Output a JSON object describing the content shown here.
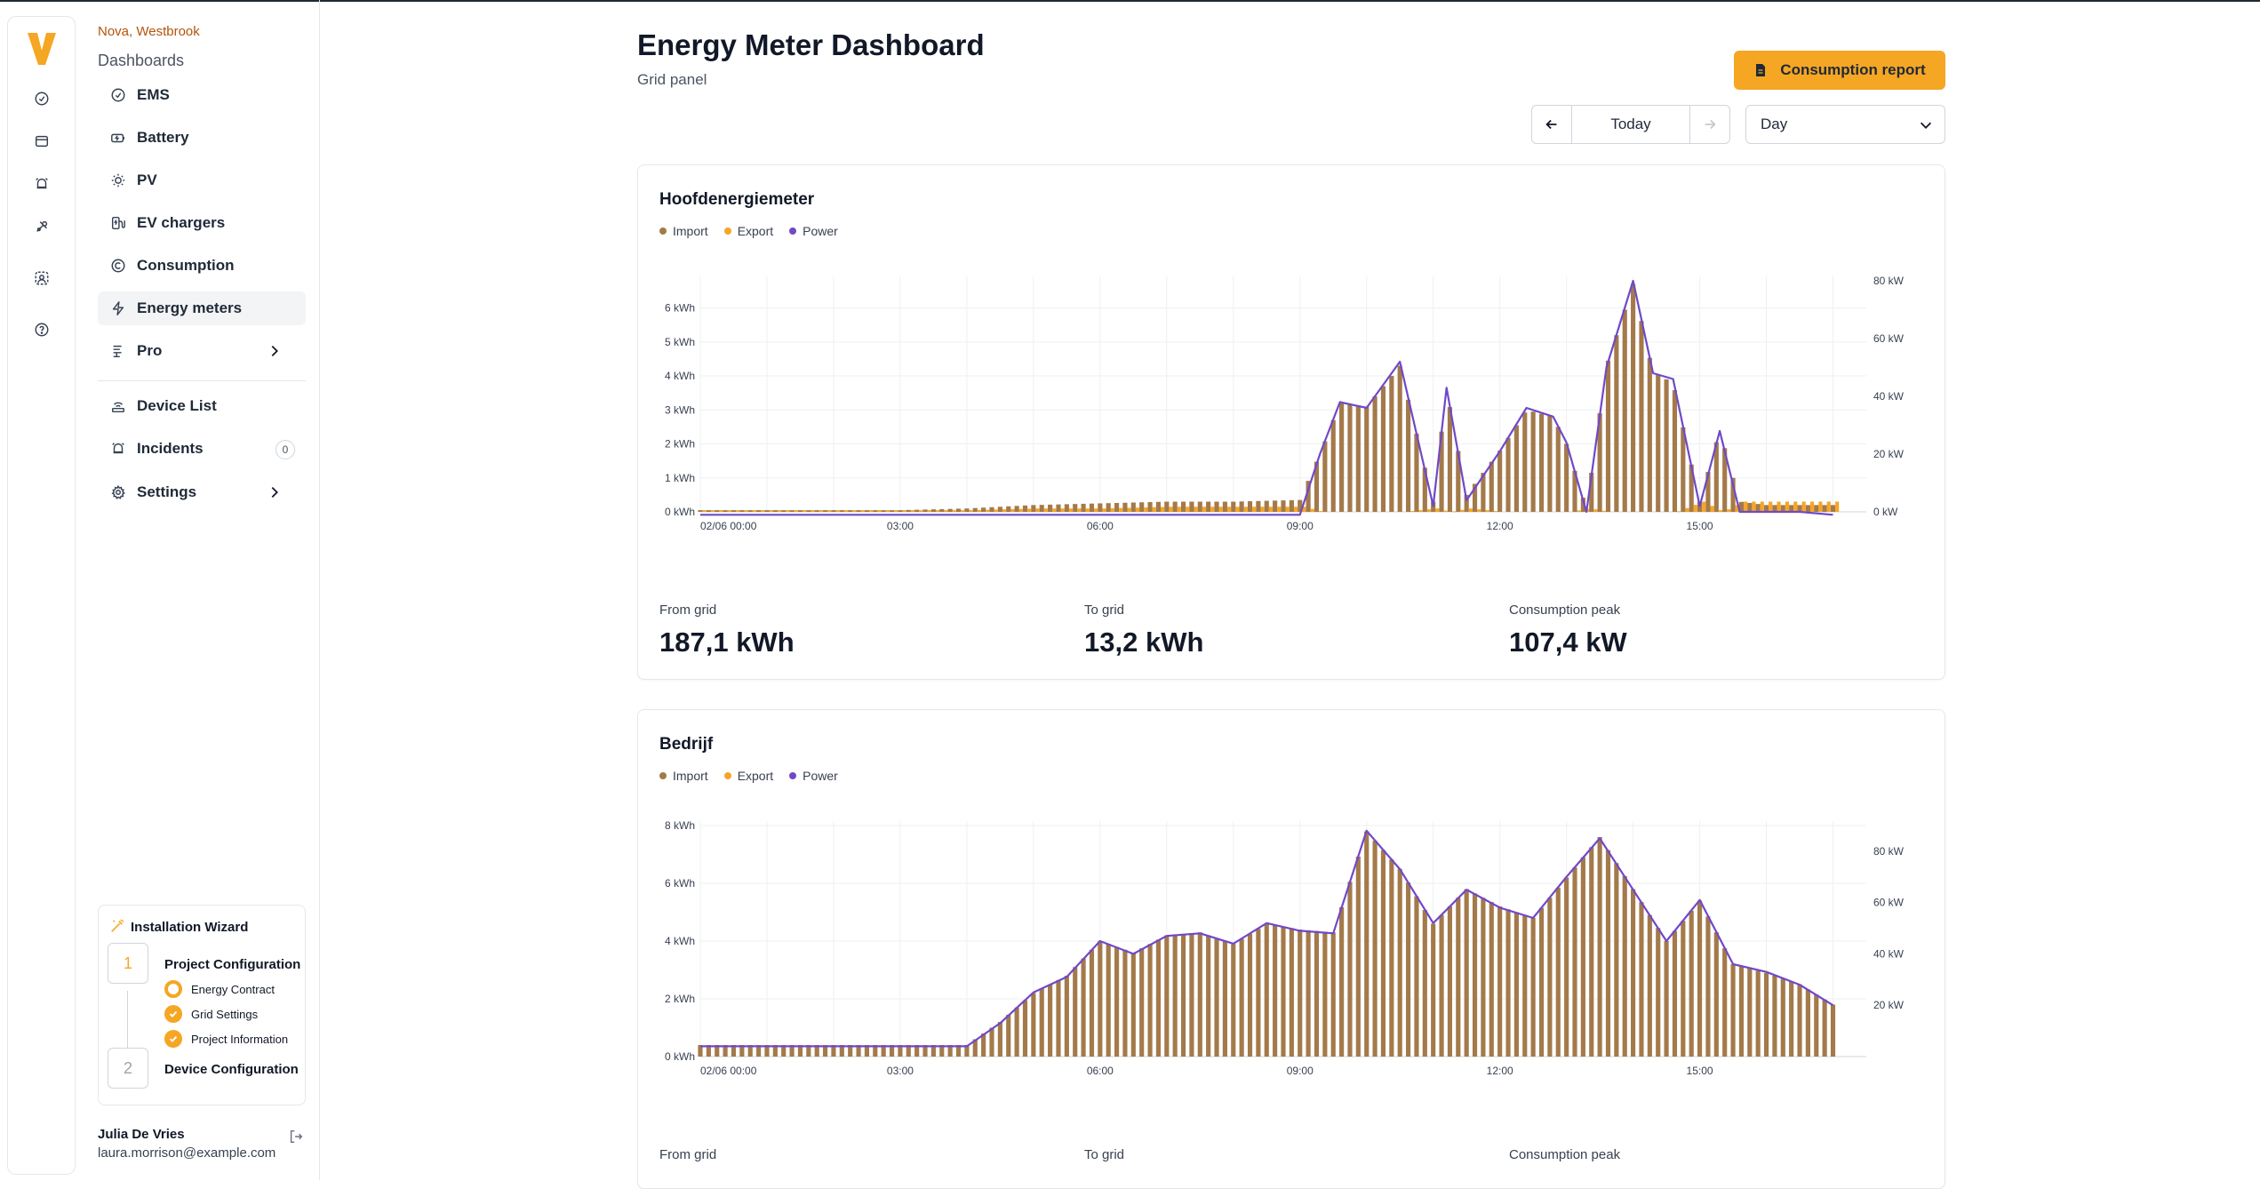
{
  "sidebar": {
    "org": "Nova, Westbrook",
    "section": "Dashboards",
    "items": [
      {
        "label": "EMS",
        "icon": "gauge-icon"
      },
      {
        "label": "Battery",
        "icon": "battery-icon"
      },
      {
        "label": "PV",
        "icon": "sun-icon"
      },
      {
        "label": "EV chargers",
        "icon": "ev-charger-icon"
      },
      {
        "label": "Consumption",
        "icon": "consumption-icon"
      },
      {
        "label": "Energy meters",
        "icon": "bolt-icon"
      },
      {
        "label": "Pro",
        "icon": "pro-icon"
      }
    ],
    "items2": [
      {
        "label": "Device List",
        "icon": "device-list-icon"
      },
      {
        "label": "Incidents",
        "icon": "bell-icon",
        "count": "0"
      },
      {
        "label": "Settings",
        "icon": "gear-icon"
      }
    ],
    "wizard": {
      "title": "Installation Wizard",
      "step1": {
        "number": "1",
        "title": "Project Configuration",
        "subs": [
          "Energy Contract",
          "Grid Settings",
          "Project Information"
        ]
      },
      "step2": {
        "number": "2",
        "title": "Device Configuration"
      }
    },
    "user": {
      "name": "Julia De Vries",
      "email": "laura.morrison@example.com"
    }
  },
  "header": {
    "title": "Energy Meter Dashboard",
    "subtitle": "Grid panel",
    "report_button": "Consumption report",
    "date_label": "Today",
    "period": "Day"
  },
  "colors": {
    "accent": "#f5a623",
    "import": "#a47a4a",
    "export": "#f5a623",
    "power": "#7048c8"
  },
  "legend": [
    "Import",
    "Export",
    "Power"
  ],
  "cards": [
    {
      "title": "Hoofdenergiemeter",
      "stats": [
        {
          "label": "From grid",
          "value": "187,1 kWh"
        },
        {
          "label": "To grid",
          "value": "13,2 kWh"
        },
        {
          "label": "Consumption peak",
          "value": "107,4 kW"
        }
      ]
    },
    {
      "title": "Bedrijf",
      "stats": [
        {
          "label": "From grid",
          "value": ""
        },
        {
          "label": "To grid",
          "value": ""
        },
        {
          "label": "Consumption peak",
          "value": ""
        }
      ]
    }
  ],
  "chart_data": [
    {
      "type": "bar",
      "title": "Hoofdenergiemeter",
      "x_tick_labels": [
        "02/06 00:00",
        "03:00",
        "06:00",
        "09:00",
        "12:00",
        "15:00"
      ],
      "y_left_ticks": [
        "0 kWh",
        "1 kWh",
        "2 kWh",
        "3 kWh",
        "4 kWh",
        "5 kWh",
        "6 kWh"
      ],
      "y_right_ticks": [
        "0 kW",
        "20 kW",
        "40 kW",
        "60 kW",
        "80 kW"
      ],
      "ylim_left": [
        0,
        6.8
      ],
      "ylim_right": [
        0,
        80
      ],
      "x_hours": [
        0,
        1,
        2,
        3,
        4,
        5,
        6,
        7,
        8,
        9,
        9.3,
        9.6,
        10,
        10.5,
        11,
        11.2,
        11.5,
        12,
        12.4,
        12.8,
        13,
        13.3,
        13.6,
        14,
        14.3,
        14.6,
        15,
        15.3,
        15.6,
        16,
        16.5,
        17
      ],
      "series": [
        {
          "name": "Import",
          "unit": "kWh",
          "values": [
            0.05,
            0.05,
            0.05,
            0.05,
            0.1,
            0.2,
            0.25,
            0.3,
            0.3,
            0.35,
            1.7,
            3.2,
            3.1,
            4.3,
            0.3,
            3.6,
            0.5,
            1.8,
            3.0,
            2.8,
            2.0,
            0.1,
            4.3,
            6.7,
            4.1,
            3.8,
            0.3,
            2.4,
            0.3,
            0.2,
            0.2,
            0.2
          ]
        },
        {
          "name": "Export",
          "unit": "kWh",
          "values": [
            0.05,
            0.05,
            0.05,
            0.05,
            0.05,
            0.1,
            0.1,
            0.15,
            0.15,
            0.15,
            0,
            0,
            0,
            0,
            0.1,
            0,
            0.1,
            0,
            0,
            0,
            0,
            0.1,
            0,
            0,
            0,
            0,
            0.3,
            0,
            0.3,
            0.3,
            0.3,
            0.3
          ]
        },
        {
          "name": "Power",
          "unit": "kW",
          "values": [
            -1,
            -1,
            -1,
            -1,
            -1,
            -1,
            -1,
            -1,
            -1,
            -1,
            20,
            38,
            36,
            52,
            2,
            43,
            4,
            21,
            36,
            33,
            24,
            0,
            50,
            80,
            48,
            46,
            2,
            28,
            0,
            0,
            0,
            -1
          ]
        }
      ]
    },
    {
      "type": "bar",
      "title": "Bedrijf",
      "x_tick_labels": [
        "02/06 00:00",
        "03:00",
        "06:00",
        "09:00",
        "12:00",
        "15:00"
      ],
      "y_left_ticks": [
        "0 kWh",
        "2 kWh",
        "4 kWh",
        "6 kWh",
        "8 kWh"
      ],
      "y_right_ticks": [
        "20 kW",
        "40 kW",
        "60 kW",
        "80 kW"
      ],
      "ylim_left": [
        0,
        8
      ],
      "ylim_right": [
        0,
        90
      ],
      "x_hours": [
        0,
        1,
        2,
        3,
        4,
        4.5,
        5,
        5.5,
        6,
        6.5,
        7,
        7.5,
        8,
        8.5,
        9,
        9.5,
        10,
        10.5,
        11,
        11.5,
        12,
        12.5,
        13,
        13.5,
        14,
        14.5,
        15,
        15.5,
        16,
        16.5,
        17
      ],
      "series": [
        {
          "name": "Import",
          "unit": "kWh",
          "values": [
            0.4,
            0.4,
            0.4,
            0.4,
            0.4,
            1.2,
            2.2,
            2.8,
            4.0,
            3.6,
            4.2,
            4.3,
            3.9,
            4.6,
            4.4,
            4.3,
            7.8,
            6.5,
            4.6,
            5.8,
            5.2,
            4.8,
            6.2,
            7.6,
            5.8,
            4.0,
            5.4,
            3.2,
            2.9,
            2.5,
            1.8
          ]
        },
        {
          "name": "Export",
          "unit": "kWh",
          "values": [
            0,
            0,
            0,
            0,
            0,
            0,
            0,
            0,
            0,
            0,
            0,
            0,
            0,
            0,
            0,
            0,
            0,
            0,
            0,
            0,
            0,
            0,
            0,
            0,
            0,
            0,
            0,
            0,
            0,
            0,
            0
          ]
        },
        {
          "name": "Power",
          "unit": "kW",
          "values": [
            4,
            4,
            4,
            4,
            4,
            13,
            25,
            31,
            45,
            40,
            47,
            48,
            44,
            52,
            49,
            48,
            88,
            73,
            52,
            65,
            58,
            54,
            70,
            85,
            65,
            45,
            61,
            36,
            33,
            28,
            20
          ]
        }
      ]
    }
  ]
}
